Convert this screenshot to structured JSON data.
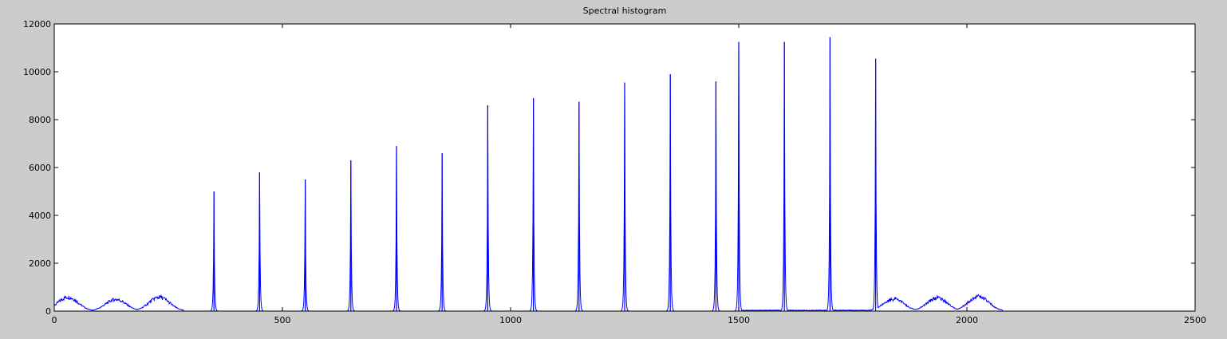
{
  "chart_data": {
    "type": "line",
    "title": "Spectral histogram",
    "xlabel": "",
    "ylabel": "",
    "xlim": [
      0,
      2500
    ],
    "ylim": [
      0,
      12000
    ],
    "xticks": [
      0,
      500,
      1000,
      1500,
      2000,
      2500
    ],
    "yticks": [
      0,
      2000,
      4000,
      6000,
      8000,
      10000,
      12000
    ],
    "grid": false,
    "series_color": "#0000ff",
    "background_color": "#cccccc",
    "axes_color": "#ffffff",
    "humps": [
      {
        "center": 30,
        "height": 600
      },
      {
        "center": 135,
        "height": 500
      },
      {
        "center": 230,
        "height": 600
      },
      {
        "center": 1840,
        "height": 520
      },
      {
        "center": 1935,
        "height": 560
      },
      {
        "center": 2025,
        "height": 620
      }
    ],
    "peaks": [
      {
        "x": 350,
        "y": 5000
      },
      {
        "x": 450,
        "y": 5800
      },
      {
        "x": 550,
        "y": 5500
      },
      {
        "x": 650,
        "y": 6300
      },
      {
        "x": 750,
        "y": 6900
      },
      {
        "x": 850,
        "y": 6600
      },
      {
        "x": 950,
        "y": 8600
      },
      {
        "x": 1050,
        "y": 8900
      },
      {
        "x": 1150,
        "y": 8750
      },
      {
        "x": 1250,
        "y": 9550
      },
      {
        "x": 1350,
        "y": 9900
      },
      {
        "x": 1450,
        "y": 9600
      },
      {
        "x": 1500,
        "y": 11250
      },
      {
        "x": 1600,
        "y": 11250
      },
      {
        "x": 1700,
        "y": 11450
      },
      {
        "x": 1800,
        "y": 10550
      }
    ]
  }
}
